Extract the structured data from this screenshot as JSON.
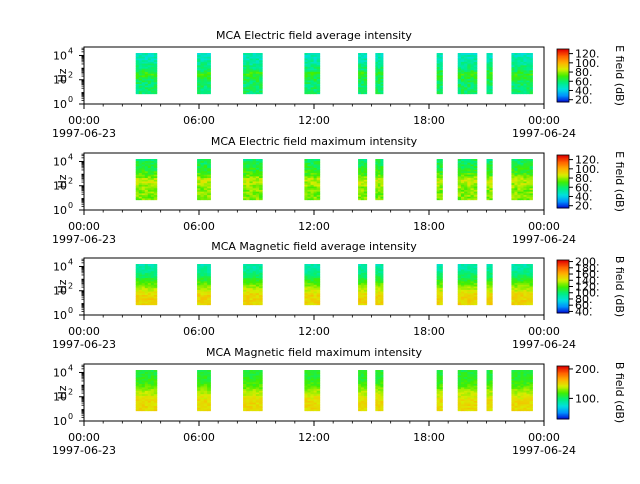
{
  "chart_data": [
    {
      "type": "heatmap",
      "title": "MCA  Electric field average intensity",
      "ylabel": "Hz",
      "yscale": "log",
      "ylim": [
        1,
        50000
      ],
      "y_ticks": [
        {
          "value": 1,
          "base": "10",
          "exp": "0"
        },
        {
          "value": 100,
          "base": "10",
          "exp": "2"
        },
        {
          "value": 10000,
          "base": "10",
          "exp": "4"
        }
      ],
      "x_ticks": [
        {
          "hour": 0,
          "time": "00:00",
          "date": "1997-06-23"
        },
        {
          "hour": 6,
          "time": "06:00",
          "date": ""
        },
        {
          "hour": 12,
          "time": "12:00",
          "date": ""
        },
        {
          "hour": 18,
          "time": "18:00",
          "date": ""
        },
        {
          "hour": 24,
          "time": "00:00",
          "date": "1997-06-24"
        }
      ],
      "colorbar": {
        "label": "E field (dB)",
        "ticks": [
          "20.",
          "40.",
          "60.",
          "80.",
          "100.",
          "120."
        ],
        "range": [
          15,
          130
        ]
      },
      "colormap": [
        "#0000d0",
        "#0090ff",
        "#00e0e0",
        "#00ee80",
        "#40ee00",
        "#d8ee00",
        "#ffb000",
        "#ff6000",
        "#e00000"
      ],
      "data_segments_hours": [
        [
          2.7,
          3.8
        ],
        [
          5.9,
          6.6
        ],
        [
          8.3,
          9.3
        ],
        [
          11.5,
          12.3
        ],
        [
          14.3,
          14.75
        ],
        [
          15.2,
          15.6
        ],
        [
          18.4,
          18.7
        ],
        [
          19.5,
          20.5
        ],
        [
          21.0,
          21.3
        ],
        [
          22.3,
          23.4
        ]
      ],
      "level_profile_db": [
        [
          50,
          60
        ],
        [
          350,
          70
        ],
        [
          700,
          60
        ],
        [
          2000,
          55
        ],
        [
          8000,
          50
        ],
        [
          30000,
          48
        ]
      ]
    },
    {
      "type": "heatmap",
      "title": "MCA  Electric field maximum intensity",
      "ylabel": "Hz",
      "yscale": "log",
      "ylim": [
        1,
        50000
      ],
      "y_ticks": [
        {
          "value": 1,
          "base": "10",
          "exp": "0"
        },
        {
          "value": 100,
          "base": "10",
          "exp": "2"
        },
        {
          "value": 10000,
          "base": "10",
          "exp": "4"
        }
      ],
      "x_ticks": [
        {
          "hour": 0,
          "time": "00:00",
          "date": "1997-06-23"
        },
        {
          "hour": 6,
          "time": "06:00",
          "date": ""
        },
        {
          "hour": 12,
          "time": "12:00",
          "date": ""
        },
        {
          "hour": 18,
          "time": "18:00",
          "date": ""
        },
        {
          "hour": 24,
          "time": "00:00",
          "date": "1997-06-24"
        }
      ],
      "colorbar": {
        "label": "E field (dB)",
        "ticks": [
          "20.",
          "40.",
          "60.",
          "80.",
          "100.",
          "120."
        ],
        "range": [
          15,
          130
        ]
      },
      "colormap": [
        "#0000d0",
        "#0090ff",
        "#00e0e0",
        "#00ee80",
        "#40ee00",
        "#d8ee00",
        "#ffb000",
        "#ff6000",
        "#e00000"
      ],
      "data_segments_hours": [
        [
          2.7,
          3.8
        ],
        [
          5.9,
          6.6
        ],
        [
          8.3,
          9.3
        ],
        [
          11.5,
          12.3
        ],
        [
          14.3,
          14.75
        ],
        [
          15.2,
          15.6
        ],
        [
          18.4,
          18.7
        ],
        [
          19.5,
          20.5
        ],
        [
          21.0,
          21.3
        ],
        [
          22.3,
          23.4
        ]
      ],
      "level_profile_db": [
        [
          50,
          78
        ],
        [
          350,
          85
        ],
        [
          700,
          75
        ],
        [
          2000,
          68
        ],
        [
          8000,
          63
        ],
        [
          30000,
          58
        ]
      ]
    },
    {
      "type": "heatmap",
      "title": "MCA  Magnetic field average intensity",
      "ylabel": "Hz",
      "yscale": "log",
      "ylim": [
        1,
        50000
      ],
      "y_ticks": [
        {
          "value": 1,
          "base": "10",
          "exp": "0"
        },
        {
          "value": 100,
          "base": "10",
          "exp": "2"
        },
        {
          "value": 10000,
          "base": "10",
          "exp": "4"
        }
      ],
      "x_ticks": [
        {
          "hour": 0,
          "time": "00:00",
          "date": "1997-06-23"
        },
        {
          "hour": 6,
          "time": "06:00",
          "date": ""
        },
        {
          "hour": 12,
          "time": "12:00",
          "date": ""
        },
        {
          "hour": 18,
          "time": "18:00",
          "date": ""
        },
        {
          "hour": 24,
          "time": "00:00",
          "date": "1997-06-24"
        }
      ],
      "colorbar": {
        "label": "B field (dB)",
        "ticks": [
          "40.",
          "60.",
          "80.",
          "100.",
          "120.",
          "140.",
          "160.",
          "180.",
          "200."
        ],
        "range": [
          35,
          205
        ]
      },
      "colormap": [
        "#0000d0",
        "#0090ff",
        "#00e0e0",
        "#00ee80",
        "#40ee00",
        "#d8ee00",
        "#ffb000",
        "#ff6000",
        "#e00000"
      ],
      "data_segments_hours": [
        [
          2.7,
          3.8
        ],
        [
          5.9,
          6.6
        ],
        [
          8.3,
          9.3
        ],
        [
          11.5,
          12.3
        ],
        [
          14.3,
          14.75
        ],
        [
          15.2,
          15.6
        ],
        [
          18.4,
          18.7
        ],
        [
          19.5,
          20.5
        ],
        [
          21.0,
          21.3
        ],
        [
          22.3,
          23.4
        ]
      ],
      "level_profile_db": [
        [
          50,
          150
        ],
        [
          300,
          128
        ],
        [
          1000,
          110
        ],
        [
          4000,
          95
        ],
        [
          30000,
          85
        ]
      ]
    },
    {
      "type": "heatmap",
      "title": "MCA  Magnetic field maximum intensity",
      "ylabel": "Hz",
      "yscale": "log",
      "ylim": [
        1,
        50000
      ],
      "y_ticks": [
        {
          "value": 1,
          "base": "10",
          "exp": "0"
        },
        {
          "value": 100,
          "base": "10",
          "exp": "2"
        },
        {
          "value": 10000,
          "base": "10",
          "exp": "4"
        }
      ],
      "x_ticks": [
        {
          "hour": 0,
          "time": "00:00",
          "date": "1997-06-23"
        },
        {
          "hour": 6,
          "time": "06:00",
          "date": ""
        },
        {
          "hour": 12,
          "time": "12:00",
          "date": ""
        },
        {
          "hour": 18,
          "time": "18:00",
          "date": ""
        },
        {
          "hour": 24,
          "time": "00:00",
          "date": "1997-06-24"
        }
      ],
      "colorbar": {
        "label": "B field (dB)",
        "ticks": [
          "100.",
          "200."
        ],
        "range": [
          30,
          210
        ]
      },
      "colormap": [
        "#0000d0",
        "#0090ff",
        "#00e0e0",
        "#00ee80",
        "#40ee00",
        "#d8ee00",
        "#ffb000",
        "#ff6000",
        "#e00000"
      ],
      "data_segments_hours": [
        [
          2.7,
          3.8
        ],
        [
          5.9,
          6.6
        ],
        [
          8.3,
          9.3
        ],
        [
          11.5,
          12.3
        ],
        [
          14.3,
          14.75
        ],
        [
          15.2,
          15.6
        ],
        [
          18.4,
          18.7
        ],
        [
          19.5,
          20.5
        ],
        [
          21.0,
          21.3
        ],
        [
          22.3,
          23.4
        ]
      ],
      "level_profile_db": [
        [
          50,
          150
        ],
        [
          300,
          135
        ],
        [
          1000,
          120
        ],
        [
          4000,
          112
        ],
        [
          30000,
          108
        ]
      ]
    }
  ]
}
